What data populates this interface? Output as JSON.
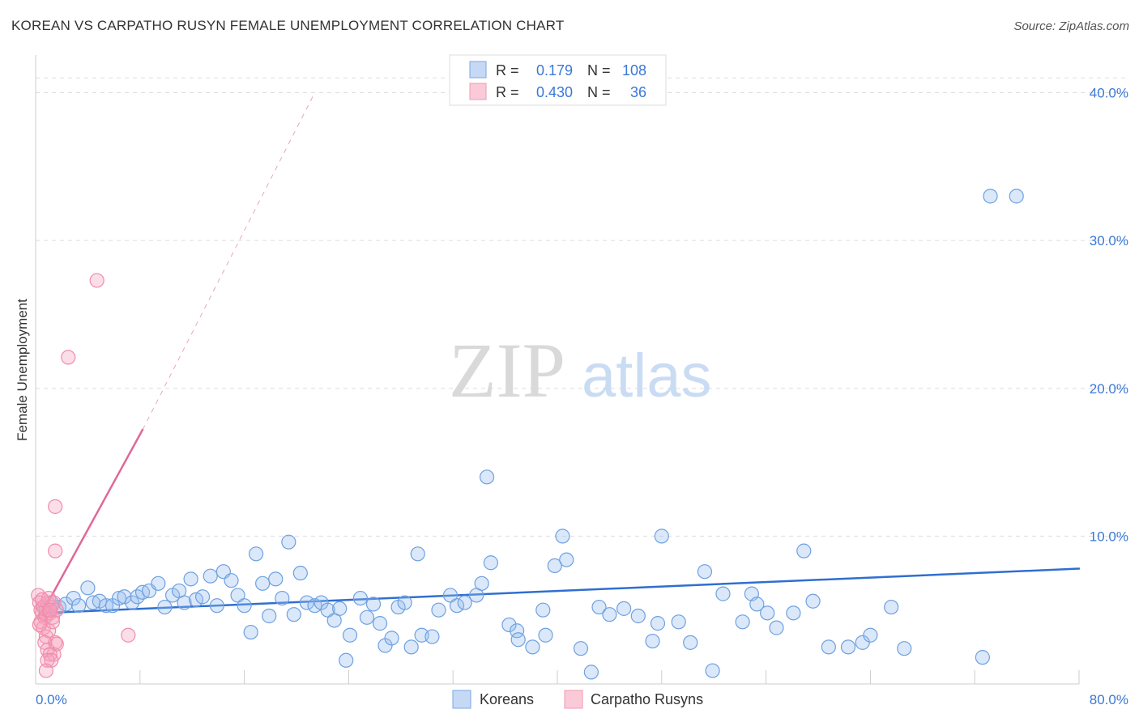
{
  "chart_data": {
    "type": "scatter",
    "title": "KOREAN VS CARPATHO RUSYN FEMALE UNEMPLOYMENT CORRELATION CHART",
    "source": "Source: ZipAtlas.com",
    "ylabel": "Female Unemployment",
    "xlabel": "",
    "xlim": [
      0,
      80
    ],
    "ylim": [
      0,
      42
    ],
    "x_tick_labels": [
      "0.0%",
      "80.0%"
    ],
    "y_tick_labels": [
      "10.0%",
      "20.0%",
      "30.0%",
      "40.0%"
    ],
    "y_tick_values": [
      10,
      20,
      30,
      40
    ],
    "watermark": {
      "zip": "ZIP",
      "atlas": "atlas"
    },
    "legend_stats": [
      {
        "r_label": "R =",
        "r_value": "0.179",
        "n_label": "N =",
        "n_value": "108"
      },
      {
        "r_label": "R =",
        "r_value": "0.430",
        "n_label": "N =",
        "n_value": "36"
      }
    ],
    "series": [
      {
        "name": "Koreans",
        "color": "#6fa0e0",
        "trend_color": "#2f6fd0",
        "trend": {
          "x": [
            0.5,
            80
          ],
          "y": [
            4.8,
            7.8
          ]
        },
        "points": [
          [
            73.2,
            33.0
          ],
          [
            75.2,
            33.0
          ],
          [
            34.6,
            14.0
          ],
          [
            0.8,
            5.0
          ],
          [
            1.2,
            5.5
          ],
          [
            1.8,
            5.2
          ],
          [
            2.3,
            5.4
          ],
          [
            2.9,
            5.8
          ],
          [
            3.3,
            5.3
          ],
          [
            4.0,
            6.5
          ],
          [
            4.4,
            5.5
          ],
          [
            4.9,
            5.6
          ],
          [
            5.4,
            5.3
          ],
          [
            5.9,
            5.3
          ],
          [
            6.4,
            5.8
          ],
          [
            6.8,
            5.9
          ],
          [
            7.4,
            5.5
          ],
          [
            7.8,
            5.9
          ],
          [
            8.2,
            6.2
          ],
          [
            8.7,
            6.3
          ],
          [
            9.4,
            6.8
          ],
          [
            9.9,
            5.2
          ],
          [
            10.5,
            6.0
          ],
          [
            11.0,
            6.3
          ],
          [
            11.4,
            5.5
          ],
          [
            11.9,
            7.1
          ],
          [
            12.3,
            5.7
          ],
          [
            12.8,
            5.9
          ],
          [
            13.4,
            7.3
          ],
          [
            13.9,
            5.3
          ],
          [
            14.4,
            7.6
          ],
          [
            15.0,
            7.0
          ],
          [
            15.5,
            6.0
          ],
          [
            16.0,
            5.3
          ],
          [
            16.5,
            3.5
          ],
          [
            16.9,
            8.8
          ],
          [
            17.4,
            6.8
          ],
          [
            17.9,
            4.6
          ],
          [
            18.4,
            7.1
          ],
          [
            18.9,
            5.8
          ],
          [
            19.4,
            9.6
          ],
          [
            19.8,
            4.7
          ],
          [
            20.3,
            7.5
          ],
          [
            20.8,
            5.5
          ],
          [
            21.4,
            5.3
          ],
          [
            21.9,
            5.5
          ],
          [
            22.4,
            5.0
          ],
          [
            22.9,
            4.3
          ],
          [
            23.3,
            5.1
          ],
          [
            23.8,
            1.6
          ],
          [
            24.1,
            3.3
          ],
          [
            24.9,
            5.8
          ],
          [
            25.4,
            4.5
          ],
          [
            25.9,
            5.4
          ],
          [
            26.4,
            4.1
          ],
          [
            26.8,
            2.6
          ],
          [
            27.3,
            3.1
          ],
          [
            27.8,
            5.2
          ],
          [
            28.3,
            5.5
          ],
          [
            28.8,
            2.5
          ],
          [
            29.3,
            8.8
          ],
          [
            29.6,
            3.3
          ],
          [
            30.4,
            3.2
          ],
          [
            30.9,
            5.0
          ],
          [
            31.8,
            6.0
          ],
          [
            32.3,
            5.3
          ],
          [
            32.9,
            5.5
          ],
          [
            33.8,
            6.0
          ],
          [
            34.2,
            6.8
          ],
          [
            34.9,
            8.2
          ],
          [
            36.3,
            4.0
          ],
          [
            36.9,
            3.6
          ],
          [
            37.0,
            3.0
          ],
          [
            38.1,
            2.5
          ],
          [
            38.9,
            5.0
          ],
          [
            39.1,
            3.3
          ],
          [
            39.8,
            8.0
          ],
          [
            40.4,
            10.0
          ],
          [
            40.7,
            8.4
          ],
          [
            41.8,
            2.4
          ],
          [
            42.6,
            0.8
          ],
          [
            43.2,
            5.2
          ],
          [
            44.0,
            4.7
          ],
          [
            45.1,
            5.1
          ],
          [
            46.2,
            4.6
          ],
          [
            47.3,
            2.9
          ],
          [
            47.7,
            4.1
          ],
          [
            48.0,
            10.0
          ],
          [
            49.3,
            4.2
          ],
          [
            50.2,
            2.8
          ],
          [
            51.3,
            7.6
          ],
          [
            51.9,
            0.9
          ],
          [
            52.7,
            6.1
          ],
          [
            54.2,
            4.2
          ],
          [
            54.9,
            6.1
          ],
          [
            55.3,
            5.4
          ],
          [
            56.1,
            4.8
          ],
          [
            56.8,
            3.8
          ],
          [
            58.1,
            4.8
          ],
          [
            58.9,
            9.0
          ],
          [
            59.6,
            5.6
          ],
          [
            60.8,
            2.5
          ],
          [
            62.3,
            2.5
          ],
          [
            63.4,
            2.8
          ],
          [
            64.0,
            3.3
          ],
          [
            65.6,
            5.2
          ],
          [
            66.6,
            2.4
          ],
          [
            72.6,
            1.8
          ]
        ]
      },
      {
        "name": "Carpatho Rusyns",
        "color": "#f08cab",
        "trend_color": "#e06898",
        "trend": {
          "x": [
            0.5,
            8.2
          ],
          "y": [
            4.8,
            17.2
          ]
        },
        "trend_ext": {
          "x": [
            8.2,
            21.4
          ],
          "y": [
            17.2,
            40.0
          ]
        },
        "points": [
          [
            0.2,
            6.0
          ],
          [
            0.3,
            5.5
          ],
          [
            0.4,
            5.0
          ],
          [
            0.5,
            4.8
          ],
          [
            0.6,
            5.2
          ],
          [
            0.7,
            4.5
          ],
          [
            0.8,
            4.6
          ],
          [
            0.9,
            5.5
          ],
          [
            1.0,
            5.8
          ],
          [
            1.1,
            4.8
          ],
          [
            1.2,
            5.2
          ],
          [
            1.3,
            4.5
          ],
          [
            0.4,
            4.2
          ],
          [
            0.6,
            3.8
          ],
          [
            0.8,
            3.2
          ],
          [
            1.0,
            3.6
          ],
          [
            1.3,
            4.2
          ],
          [
            1.4,
            2.0
          ],
          [
            1.5,
            2.8
          ],
          [
            1.6,
            2.7
          ],
          [
            0.7,
            2.8
          ],
          [
            0.9,
            2.3
          ],
          [
            1.1,
            2.0
          ],
          [
            0.9,
            1.6
          ],
          [
            1.2,
            1.6
          ],
          [
            0.8,
            0.9
          ],
          [
            1.4,
            5.5
          ],
          [
            1.6,
            5.0
          ],
          [
            1.5,
            9.0
          ],
          [
            1.5,
            12.0
          ],
          [
            2.5,
            22.1
          ],
          [
            4.7,
            27.3
          ],
          [
            7.1,
            3.3
          ],
          [
            0.5,
            5.7
          ],
          [
            0.3,
            4.0
          ],
          [
            1.1,
            5.0
          ]
        ]
      }
    ]
  }
}
